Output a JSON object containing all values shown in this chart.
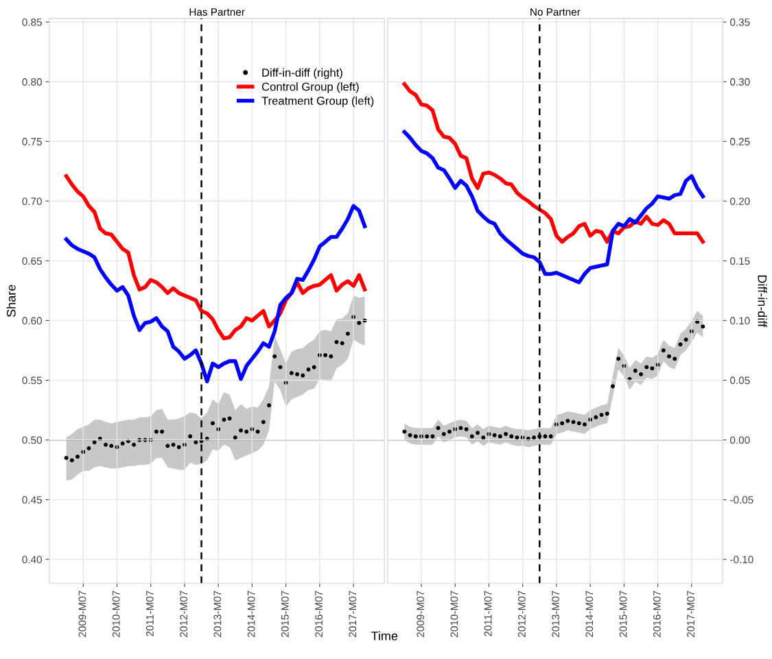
{
  "chart_data": [
    {
      "type": "line",
      "title": "Has Partner",
      "xlabel": "Time",
      "ylabel": "Share",
      "tick_labels": "xy",
      "grid": true,
      "legend": "top right",
      "x": [
        "2009-01",
        "2009-03",
        "2009-05",
        "2009-07",
        "2009-09",
        "2009-11",
        "2010-01",
        "2010-03",
        "2010-05",
        "2010-07",
        "2010-09",
        "2010-11",
        "2011-01",
        "2011-03",
        "2011-05",
        "2011-07",
        "2011-09",
        "2011-11",
        "2012-01",
        "2012-03",
        "2012-05",
        "2012-07",
        "2012-09",
        "2012-11",
        "2013-01",
        "2013-03",
        "2013-05",
        "2013-07",
        "2013-09",
        "2013-11",
        "2014-01",
        "2014-03",
        "2014-05",
        "2014-07",
        "2014-09",
        "2014-11",
        "2015-01",
        "2015-03",
        "2015-05",
        "2015-07",
        "2015-09",
        "2015-11",
        "2016-01",
        "2016-03",
        "2016-05",
        "2016-07",
        "2016-09",
        "2016-11",
        "2017-01",
        "2017-03",
        "2017-05",
        "2017-07",
        "2017-09",
        "2017-11"
      ],
      "xlim": [
        "2008-07",
        "2018-06"
      ],
      "xticks": [
        {
          "value": "2009-07",
          "label": "2009-M07"
        },
        {
          "value": "2010-07",
          "label": "2010-M07"
        },
        {
          "value": "2011-07",
          "label": "2011-M07"
        },
        {
          "value": "2012-07",
          "label": "2012-M07"
        },
        {
          "value": "2013-07",
          "label": "2013-M07"
        },
        {
          "value": "2014-07",
          "label": "2014-M07"
        },
        {
          "value": "2015-07",
          "label": "2015-M07"
        },
        {
          "value": "2016-07",
          "label": "2016-M07"
        },
        {
          "value": "2017-07",
          "label": "2017-M07"
        }
      ],
      "ylim": [
        0.38,
        0.853
      ],
      "yticks": [
        {
          "value": 0.4,
          "label": "0.40"
        },
        0.45,
        {
          "value": 0.5,
          "label": "0.50"
        },
        0.55,
        {
          "value": 0.6,
          "label": "0.60"
        },
        0.65,
        {
          "value": 0.7,
          "label": "0.70"
        },
        0.75,
        {
          "value": 0.8,
          "label": "0.80"
        },
        0.85
      ],
      "y2lim": [
        -0.12,
        0.353
      ],
      "ref_lines": [
        {
          "axis": "x",
          "value": "2013-01",
          "line_style": "dashed",
          "color": "#000000"
        },
        {
          "axis": "y2",
          "value": 0,
          "color": "#000000"
        }
      ],
      "series": [
        {
          "name": "Diff-in-diff (right)",
          "type": "scatter",
          "marker": "circle",
          "axis": "y2",
          "color": "#000000",
          "values": [
            -0.015,
            -0.017,
            -0.014,
            -0.01,
            -0.007,
            -0.002,
            0.001,
            -0.004,
            -0.005,
            -0.006,
            -0.003,
            -0.001,
            -0.004,
            0.0,
            0.0,
            0.0,
            0.007,
            0.007,
            -0.005,
            -0.004,
            -0.006,
            -0.004,
            0.003,
            -0.002,
            -0.001,
            0.001,
            0.014,
            0.009,
            0.017,
            0.018,
            0.002,
            0.008,
            0.007,
            0.009,
            0.007,
            0.015,
            0.029,
            0.07,
            0.061,
            0.048,
            0.056,
            0.055,
            0.054,
            0.059,
            0.061,
            0.071,
            0.071,
            0.07,
            0.082,
            0.081,
            0.089,
            0.103,
            0.098,
            0.1
          ],
          "lower": [
            -0.034,
            -0.033,
            -0.029,
            -0.026,
            -0.026,
            -0.023,
            -0.022,
            -0.023,
            -0.024,
            -0.024,
            -0.023,
            -0.022,
            -0.022,
            -0.021,
            -0.021,
            -0.02,
            -0.015,
            -0.015,
            -0.023,
            -0.024,
            -0.025,
            -0.025,
            -0.019,
            -0.021,
            -0.02,
            -0.017,
            -0.008,
            -0.009,
            -0.004,
            -0.006,
            -0.017,
            -0.015,
            -0.013,
            -0.011,
            -0.009,
            -0.004,
            0.008,
            0.049,
            0.042,
            0.028,
            0.034,
            0.036,
            0.038,
            0.042,
            0.043,
            0.051,
            0.05,
            0.049,
            0.06,
            0.063,
            0.068,
            0.084,
            0.081,
            0.079
          ],
          "upper": [
            0.002,
            0.005,
            0.009,
            0.011,
            0.013,
            0.017,
            0.017,
            0.015,
            0.014,
            0.015,
            0.016,
            0.017,
            0.017,
            0.019,
            0.019,
            0.02,
            0.025,
            0.026,
            0.017,
            0.017,
            0.018,
            0.02,
            0.023,
            0.022,
            0.018,
            0.023,
            0.034,
            0.03,
            0.04,
            0.038,
            0.025,
            0.03,
            0.026,
            0.028,
            0.027,
            0.034,
            0.045,
            0.087,
            0.076,
            0.064,
            0.074,
            0.076,
            0.077,
            0.081,
            0.084,
            0.091,
            0.092,
            0.091,
            0.101,
            0.102,
            0.106,
            0.121,
            0.119,
            0.12
          ]
        },
        {
          "name": "Control Group (left)",
          "marker": "none",
          "axis": "y",
          "color": "#ff0000",
          "values": [
            0.721,
            0.714,
            0.708,
            0.704,
            0.696,
            0.691,
            0.677,
            0.673,
            0.672,
            0.666,
            0.66,
            0.657,
            0.638,
            0.626,
            0.628,
            0.634,
            0.632,
            0.628,
            0.623,
            0.627,
            0.623,
            0.621,
            0.619,
            0.617,
            0.608,
            0.606,
            0.601,
            0.592,
            0.585,
            0.586,
            0.592,
            0.595,
            0.602,
            0.6,
            0.604,
            0.608,
            0.595,
            0.6,
            0.606,
            0.617,
            0.623,
            0.632,
            0.623,
            0.627,
            0.629,
            0.63,
            0.634,
            0.638,
            0.625,
            0.63,
            0.633,
            0.629,
            0.638,
            0.626
          ]
        },
        {
          "name": "Treatment Group (left)",
          "marker": "none",
          "axis": "y",
          "color": "#0000ff",
          "values": [
            0.668,
            0.663,
            0.66,
            0.658,
            0.656,
            0.653,
            0.643,
            0.636,
            0.63,
            0.625,
            0.628,
            0.621,
            0.604,
            0.592,
            0.598,
            0.599,
            0.602,
            0.595,
            0.591,
            0.578,
            0.574,
            0.568,
            0.571,
            0.575,
            0.564,
            0.549,
            0.564,
            0.561,
            0.564,
            0.566,
            0.566,
            0.551,
            0.562,
            0.568,
            0.574,
            0.581,
            0.578,
            0.591,
            0.613,
            0.619,
            0.623,
            0.635,
            0.634,
            0.642,
            0.651,
            0.662,
            0.666,
            0.67,
            0.67,
            0.677,
            0.685,
            0.696,
            0.692,
            0.679
          ]
        }
      ]
    },
    {
      "type": "line",
      "title": "No Partner",
      "y2label": "Diff-in-diff",
      "tick_labels": "xy2",
      "grid": true,
      "x": [
        "2009-01",
        "2009-03",
        "2009-05",
        "2009-07",
        "2009-09",
        "2009-11",
        "2010-01",
        "2010-03",
        "2010-05",
        "2010-07",
        "2010-09",
        "2010-11",
        "2011-01",
        "2011-03",
        "2011-05",
        "2011-07",
        "2011-09",
        "2011-11",
        "2012-01",
        "2012-03",
        "2012-05",
        "2012-07",
        "2012-09",
        "2012-11",
        "2013-01",
        "2013-03",
        "2013-05",
        "2013-07",
        "2013-09",
        "2013-11",
        "2014-01",
        "2014-03",
        "2014-05",
        "2014-07",
        "2014-09",
        "2014-11",
        "2015-01",
        "2015-03",
        "2015-05",
        "2015-07",
        "2015-09",
        "2015-11",
        "2016-01",
        "2016-03",
        "2016-05",
        "2016-07",
        "2016-09",
        "2016-11",
        "2017-01",
        "2017-03",
        "2017-05",
        "2017-07",
        "2017-09",
        "2017-11"
      ],
      "xlim": [
        "2008-07",
        "2018-06"
      ],
      "xticks": [
        {
          "value": "2009-07",
          "label": "2009-M07"
        },
        {
          "value": "2010-07",
          "label": "2010-M07"
        },
        {
          "value": "2011-07",
          "label": "2011-M07"
        },
        {
          "value": "2012-07",
          "label": "2012-M07"
        },
        {
          "value": "2013-07",
          "label": "2013-M07"
        },
        {
          "value": "2014-07",
          "label": "2014-M07"
        },
        {
          "value": "2015-07",
          "label": "2015-M07"
        },
        {
          "value": "2016-07",
          "label": "2016-M07"
        },
        {
          "value": "2017-07",
          "label": "2017-M07"
        }
      ],
      "ylim": [
        0.38,
        0.853
      ],
      "y2lim": [
        -0.12,
        0.353
      ],
      "y2ticks": [
        {
          "value": -0.1,
          "label": "-0.10"
        },
        {
          "value": -0.05,
          "label": "-0.05"
        },
        {
          "value": 0,
          "label": "0.00"
        },
        0.05,
        {
          "value": 0.1,
          "label": "0.10"
        },
        0.15,
        {
          "value": 0.2,
          "label": "0.20"
        },
        0.25,
        {
          "value": 0.3,
          "label": "0.30"
        },
        0.35
      ],
      "ref_lines": [
        {
          "axis": "x",
          "value": "2013-01",
          "line_style": "dashed",
          "color": "#000000"
        },
        {
          "axis": "y2",
          "value": 0,
          "color": "#000000"
        }
      ],
      "series": [
        {
          "type": "scatter",
          "marker": "circle",
          "axis": "y2",
          "color": "#000000",
          "values": [
            0.007,
            0.004,
            0.003,
            0.003,
            0.003,
            0.003,
            0.01,
            0.005,
            0.007,
            0.009,
            0.01,
            0.009,
            0.003,
            0.006,
            0.002,
            0.005,
            0.004,
            0.003,
            0.005,
            0.003,
            0.002,
            0.002,
            0.001,
            0.002,
            0.003,
            0.003,
            0.003,
            0.013,
            0.014,
            0.016,
            0.015,
            0.014,
            0.013,
            0.017,
            0.019,
            0.021,
            0.022,
            0.045,
            0.068,
            0.062,
            0.051,
            0.058,
            0.055,
            0.061,
            0.06,
            0.063,
            0.075,
            0.07,
            0.068,
            0.08,
            0.084,
            0.091,
            0.099,
            0.095
          ],
          "lower": [
            0.0,
            -0.003,
            -0.004,
            -0.004,
            -0.004,
            -0.004,
            0.003,
            -0.002,
            0.0,
            0.002,
            0.003,
            0.002,
            -0.004,
            -0.001,
            -0.005,
            -0.002,
            -0.003,
            -0.004,
            -0.002,
            -0.004,
            -0.005,
            -0.005,
            -0.006,
            -0.005,
            -0.004,
            -0.004,
            -0.004,
            0.005,
            0.006,
            0.008,
            0.007,
            0.006,
            0.005,
            0.009,
            0.011,
            0.013,
            0.014,
            0.036,
            0.059,
            0.053,
            0.042,
            0.049,
            0.046,
            0.052,
            0.051,
            0.054,
            0.066,
            0.061,
            0.059,
            0.071,
            0.075,
            0.082,
            0.09,
            0.086
          ],
          "upper": [
            0.014,
            0.011,
            0.01,
            0.01,
            0.01,
            0.01,
            0.017,
            0.012,
            0.014,
            0.016,
            0.017,
            0.016,
            0.01,
            0.013,
            0.009,
            0.012,
            0.011,
            0.01,
            0.012,
            0.01,
            0.009,
            0.009,
            0.008,
            0.009,
            0.01,
            0.01,
            0.01,
            0.021,
            0.022,
            0.024,
            0.023,
            0.022,
            0.021,
            0.025,
            0.027,
            0.029,
            0.03,
            0.054,
            0.077,
            0.071,
            0.06,
            0.067,
            0.064,
            0.07,
            0.069,
            0.072,
            0.084,
            0.079,
            0.077,
            0.089,
            0.093,
            0.1,
            0.108,
            0.104
          ]
        },
        {
          "marker": "none",
          "axis": "y",
          "color": "#ff0000",
          "values": [
            0.798,
            0.792,
            0.789,
            0.781,
            0.78,
            0.776,
            0.76,
            0.754,
            0.753,
            0.748,
            0.738,
            0.736,
            0.719,
            0.711,
            0.723,
            0.724,
            0.722,
            0.719,
            0.715,
            0.714,
            0.707,
            0.703,
            0.7,
            0.696,
            0.693,
            0.69,
            0.685,
            0.671,
            0.666,
            0.67,
            0.673,
            0.679,
            0.681,
            0.671,
            0.675,
            0.674,
            0.666,
            0.675,
            0.673,
            0.678,
            0.679,
            0.683,
            0.681,
            0.687,
            0.681,
            0.68,
            0.684,
            0.681,
            0.673,
            0.673,
            0.673,
            0.673,
            0.673,
            0.666
          ]
        },
        {
          "marker": "none",
          "axis": "y",
          "color": "#0000ff",
          "values": [
            0.758,
            0.753,
            0.747,
            0.742,
            0.74,
            0.736,
            0.728,
            0.726,
            0.719,
            0.711,
            0.717,
            0.713,
            0.704,
            0.692,
            0.687,
            0.683,
            0.681,
            0.673,
            0.668,
            0.664,
            0.66,
            0.656,
            0.654,
            0.653,
            0.649,
            0.639,
            0.639,
            0.64,
            0.638,
            0.636,
            0.634,
            0.632,
            0.639,
            0.644,
            0.645,
            0.646,
            0.647,
            0.675,
            0.681,
            0.679,
            0.685,
            0.682,
            0.688,
            0.694,
            0.698,
            0.704,
            0.703,
            0.702,
            0.705,
            0.706,
            0.717,
            0.721,
            0.711,
            0.704
          ]
        }
      ]
    }
  ]
}
